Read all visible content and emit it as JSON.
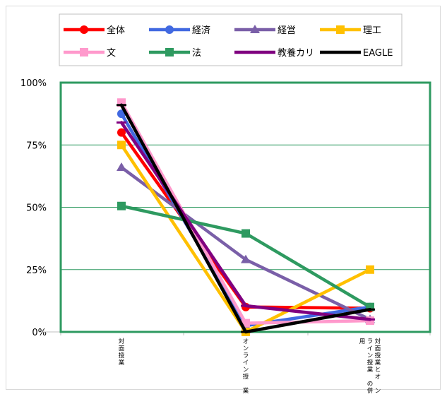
{
  "chart_data": {
    "type": "line",
    "categories": [
      [
        "対",
        "面",
        "授",
        "業"
      ],
      [
        "オ",
        "ン",
        "ラ",
        "イ",
        "ン",
        "授",
        "",
        "業"
      ],
      [
        "対",
        "面",
        "授",
        "業",
        "と",
        "オ",
        "",
        "ン",
        "ラ",
        "イ",
        "ン",
        "授",
        "業",
        "",
        "の",
        "併",
        "用"
      ]
    ],
    "ylim": [
      0,
      100
    ],
    "yticks": [
      0,
      25,
      50,
      75,
      100
    ],
    "ytick_labels": [
      "0%",
      "25%",
      "50%",
      "75%",
      "100%"
    ],
    "grid": true,
    "legend_position": "top",
    "series": [
      {
        "name": "全体",
        "color": "#ff0000",
        "marker": "circle",
        "values": [
          80,
          10,
          9.5
        ]
      },
      {
        "name": "経済",
        "color": "#4169e1",
        "marker": "circle",
        "values": [
          87.5,
          2.5,
          10
        ]
      },
      {
        "name": "経営",
        "color": "#7a5fa8",
        "marker": "triangle",
        "values": [
          66,
          29,
          5
        ]
      },
      {
        "name": "理工",
        "color": "#ffc000",
        "marker": "square",
        "values": [
          75,
          0,
          25
        ]
      },
      {
        "name": "文",
        "color": "#ff99cc",
        "marker": "square",
        "values": [
          92,
          3.5,
          4.5
        ]
      },
      {
        "name": "法",
        "color": "#2e9a60",
        "marker": "square",
        "values": [
          50.5,
          39.5,
          10
        ]
      },
      {
        "name": "教養カリ",
        "color": "#800080",
        "marker": "dash",
        "values": [
          84,
          10.5,
          5
        ]
      },
      {
        "name": "EAGLE",
        "color": "#000000",
        "marker": "dash",
        "values": [
          91,
          0,
          9
        ]
      }
    ],
    "plot_border_color": "#2e9a60",
    "gridline_color": "#2e9a60"
  }
}
